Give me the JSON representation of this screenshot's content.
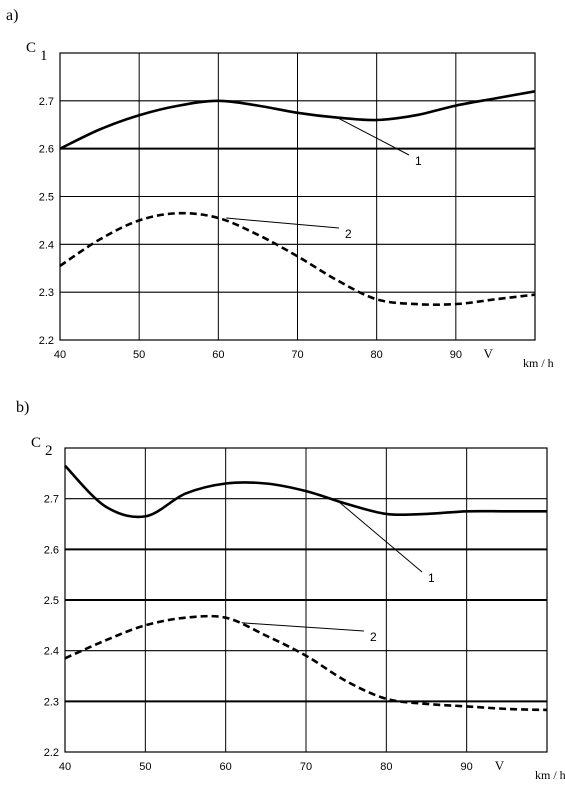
{
  "chart_data": [
    {
      "type": "line",
      "panel_label": "a)",
      "ylabel_letter": "C",
      "ylabel_sub": "1",
      "xlabel": "V",
      "xunit": "km / h",
      "xlim": [
        40,
        100
      ],
      "ylim": [
        2.2,
        2.8
      ],
      "xticks": [
        "40",
        "50",
        "60",
        "70",
        "80",
        "90"
      ],
      "yticks": [
        "2.2",
        "2.3",
        "2.4",
        "2.5",
        "2.6",
        "2.7"
      ],
      "grid": true,
      "series": [
        {
          "name": "1",
          "style": "solid",
          "x": [
            40,
            45,
            50,
            55,
            60,
            65,
            70,
            75,
            80,
            85,
            90,
            95,
            100
          ],
          "y": [
            2.6,
            2.64,
            2.67,
            2.69,
            2.7,
            2.69,
            2.675,
            2.665,
            2.66,
            2.67,
            2.69,
            2.705,
            2.72
          ],
          "label_at": [
            75,
            2.665
          ]
        },
        {
          "name": "2",
          "style": "dashed",
          "x": [
            40,
            45,
            50,
            55,
            60,
            65,
            70,
            75,
            80,
            85,
            90,
            95,
            100
          ],
          "y": [
            2.355,
            2.41,
            2.45,
            2.465,
            2.455,
            2.42,
            2.375,
            2.325,
            2.285,
            2.275,
            2.275,
            2.285,
            2.295
          ],
          "label_at": [
            61,
            2.455
          ]
        }
      ]
    },
    {
      "type": "line",
      "panel_label": "b)",
      "ylabel_letter": "C",
      "ylabel_sub": "2",
      "xlabel": "V",
      "xunit": "km / h",
      "xlim": [
        40,
        100
      ],
      "ylim": [
        2.2,
        2.8
      ],
      "xticks": [
        "40",
        "50",
        "60",
        "70",
        "80",
        "90"
      ],
      "yticks": [
        "2.2",
        "2.3",
        "2.4",
        "2.5",
        "2.6",
        "2.7"
      ],
      "grid": true,
      "series": [
        {
          "name": "1",
          "style": "solid",
          "x": [
            40,
            45,
            50,
            55,
            60,
            65,
            70,
            75,
            80,
            85,
            90,
            95,
            100
          ],
          "y": [
            2.765,
            2.685,
            2.665,
            2.71,
            2.73,
            2.73,
            2.715,
            2.69,
            2.67,
            2.67,
            2.675,
            2.675,
            2.675
          ],
          "label_at": [
            74,
            2.695
          ]
        },
        {
          "name": "2",
          "style": "dashed",
          "x": [
            40,
            45,
            50,
            55,
            60,
            65,
            70,
            75,
            80,
            85,
            90,
            95,
            100
          ],
          "y": [
            2.385,
            2.42,
            2.45,
            2.465,
            2.465,
            2.43,
            2.39,
            2.34,
            2.305,
            2.295,
            2.29,
            2.285,
            2.283
          ],
          "label_at": [
            62,
            2.455
          ]
        }
      ]
    }
  ]
}
